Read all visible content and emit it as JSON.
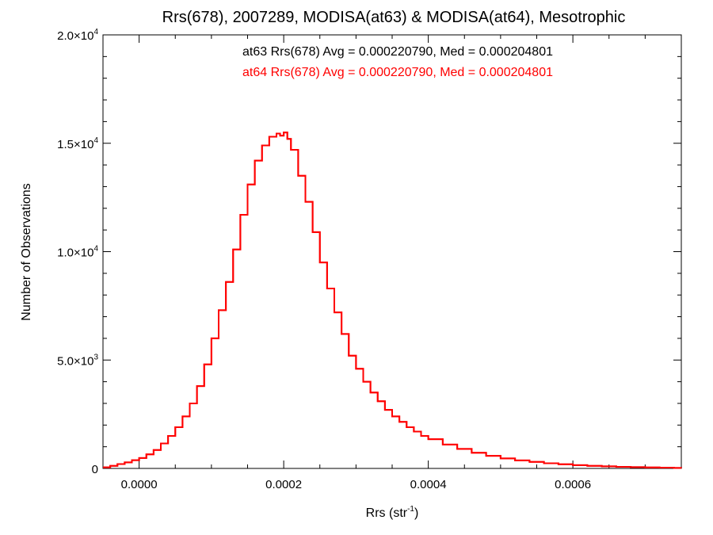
{
  "chart_data": {
    "type": "line",
    "title": "Rrs(678), 2007289, MODISA(at63) & MODISA(at64), Mesotrophic",
    "xlabel": {
      "base": "Rrs (str",
      "sup": "-1",
      "close": ")"
    },
    "ylabel": "Number of Observations",
    "xlim": [
      -5e-05,
      0.00075
    ],
    "ylim": [
      0,
      20000
    ],
    "x_ticks": [
      {
        "value": 0.0,
        "label": "0.0000"
      },
      {
        "value": 0.0002,
        "label": "0.0002"
      },
      {
        "value": 0.0004,
        "label": "0.0004"
      },
      {
        "value": 0.0006,
        "label": "0.0006"
      }
    ],
    "y_ticks": [
      {
        "value": 0,
        "mant": "0",
        "exp": ""
      },
      {
        "value": 5000,
        "mant": "5.0",
        "exp": "3"
      },
      {
        "value": 10000,
        "mant": "1.0",
        "exp": "4"
      },
      {
        "value": 15000,
        "mant": "1.5",
        "exp": "4"
      },
      {
        "value": 20000,
        "mant": "2.0",
        "exp": "4"
      }
    ],
    "annotations": [
      {
        "text": "at63 Rrs(678) Avg = 0.000220790, Med = 0.000204801",
        "color": "#000000"
      },
      {
        "text": "at64 Rrs(678) Avg = 0.000220790, Med = 0.000204801",
        "color": "#ff0000"
      }
    ],
    "series": [
      {
        "name": "at63",
        "color": "#ff0000",
        "x": [
          -5e-05,
          -4e-05,
          -3e-05,
          -2e-05,
          -1e-05,
          0.0,
          1e-05,
          2e-05,
          3e-05,
          4e-05,
          5e-05,
          6e-05,
          7e-05,
          8e-05,
          9e-05,
          0.0001,
          0.00011,
          0.00012,
          0.00013,
          0.00014,
          0.00015,
          0.00016,
          0.00017,
          0.00018,
          0.00019,
          0.000195,
          0.0002,
          0.000205,
          0.00021,
          0.00022,
          0.00023,
          0.00024,
          0.00025,
          0.00026,
          0.00027,
          0.00028,
          0.00029,
          0.0003,
          0.00031,
          0.00032,
          0.00033,
          0.00034,
          0.00035,
          0.00036,
          0.00037,
          0.00038,
          0.00039,
          0.0004,
          0.00042,
          0.00044,
          0.00046,
          0.00048,
          0.0005,
          0.00052,
          0.00054,
          0.00056,
          0.00058,
          0.0006,
          0.00062,
          0.00064,
          0.00066,
          0.00068,
          0.0007,
          0.00072,
          0.00074,
          0.00075
        ],
        "values": [
          50,
          120,
          200,
          280,
          380,
          480,
          650,
          850,
          1150,
          1500,
          1900,
          2400,
          3000,
          3800,
          4800,
          6000,
          7300,
          8600,
          10100,
          11700,
          13100,
          14200,
          14900,
          15300,
          15450,
          15350,
          15500,
          15200,
          14700,
          13500,
          12300,
          10900,
          9500,
          8300,
          7200,
          6200,
          5200,
          4600,
          4000,
          3500,
          3100,
          2700,
          2400,
          2150,
          1900,
          1700,
          1500,
          1350,
          1100,
          900,
          720,
          580,
          460,
          370,
          300,
          240,
          190,
          150,
          120,
          95,
          75,
          60,
          45,
          35,
          25,
          20
        ]
      },
      {
        "name": "at64",
        "color": "#ff0000",
        "x": [
          -5e-05,
          -4e-05,
          -3e-05,
          -2e-05,
          -1e-05,
          0.0,
          1e-05,
          2e-05,
          3e-05,
          4e-05,
          5e-05,
          6e-05,
          7e-05,
          8e-05,
          9e-05,
          0.0001,
          0.00011,
          0.00012,
          0.00013,
          0.00014,
          0.00015,
          0.00016,
          0.00017,
          0.00018,
          0.00019,
          0.000195,
          0.0002,
          0.000205,
          0.00021,
          0.00022,
          0.00023,
          0.00024,
          0.00025,
          0.00026,
          0.00027,
          0.00028,
          0.00029,
          0.0003,
          0.00031,
          0.00032,
          0.00033,
          0.00034,
          0.00035,
          0.00036,
          0.00037,
          0.00038,
          0.00039,
          0.0004,
          0.00042,
          0.00044,
          0.00046,
          0.00048,
          0.0005,
          0.00052,
          0.00054,
          0.00056,
          0.00058,
          0.0006,
          0.00062,
          0.00064,
          0.00066,
          0.00068,
          0.0007,
          0.00072,
          0.00074,
          0.00075
        ],
        "values": [
          50,
          120,
          200,
          280,
          380,
          480,
          650,
          850,
          1150,
          1500,
          1900,
          2400,
          3000,
          3800,
          4800,
          6000,
          7300,
          8600,
          10100,
          11700,
          13100,
          14200,
          14900,
          15300,
          15450,
          15350,
          15500,
          15200,
          14700,
          13500,
          12300,
          10900,
          9500,
          8300,
          7200,
          6200,
          5200,
          4600,
          4000,
          3500,
          3100,
          2700,
          2400,
          2150,
          1900,
          1700,
          1500,
          1350,
          1100,
          900,
          720,
          580,
          460,
          370,
          300,
          240,
          190,
          150,
          120,
          95,
          75,
          60,
          45,
          35,
          25,
          20
        ]
      }
    ]
  }
}
